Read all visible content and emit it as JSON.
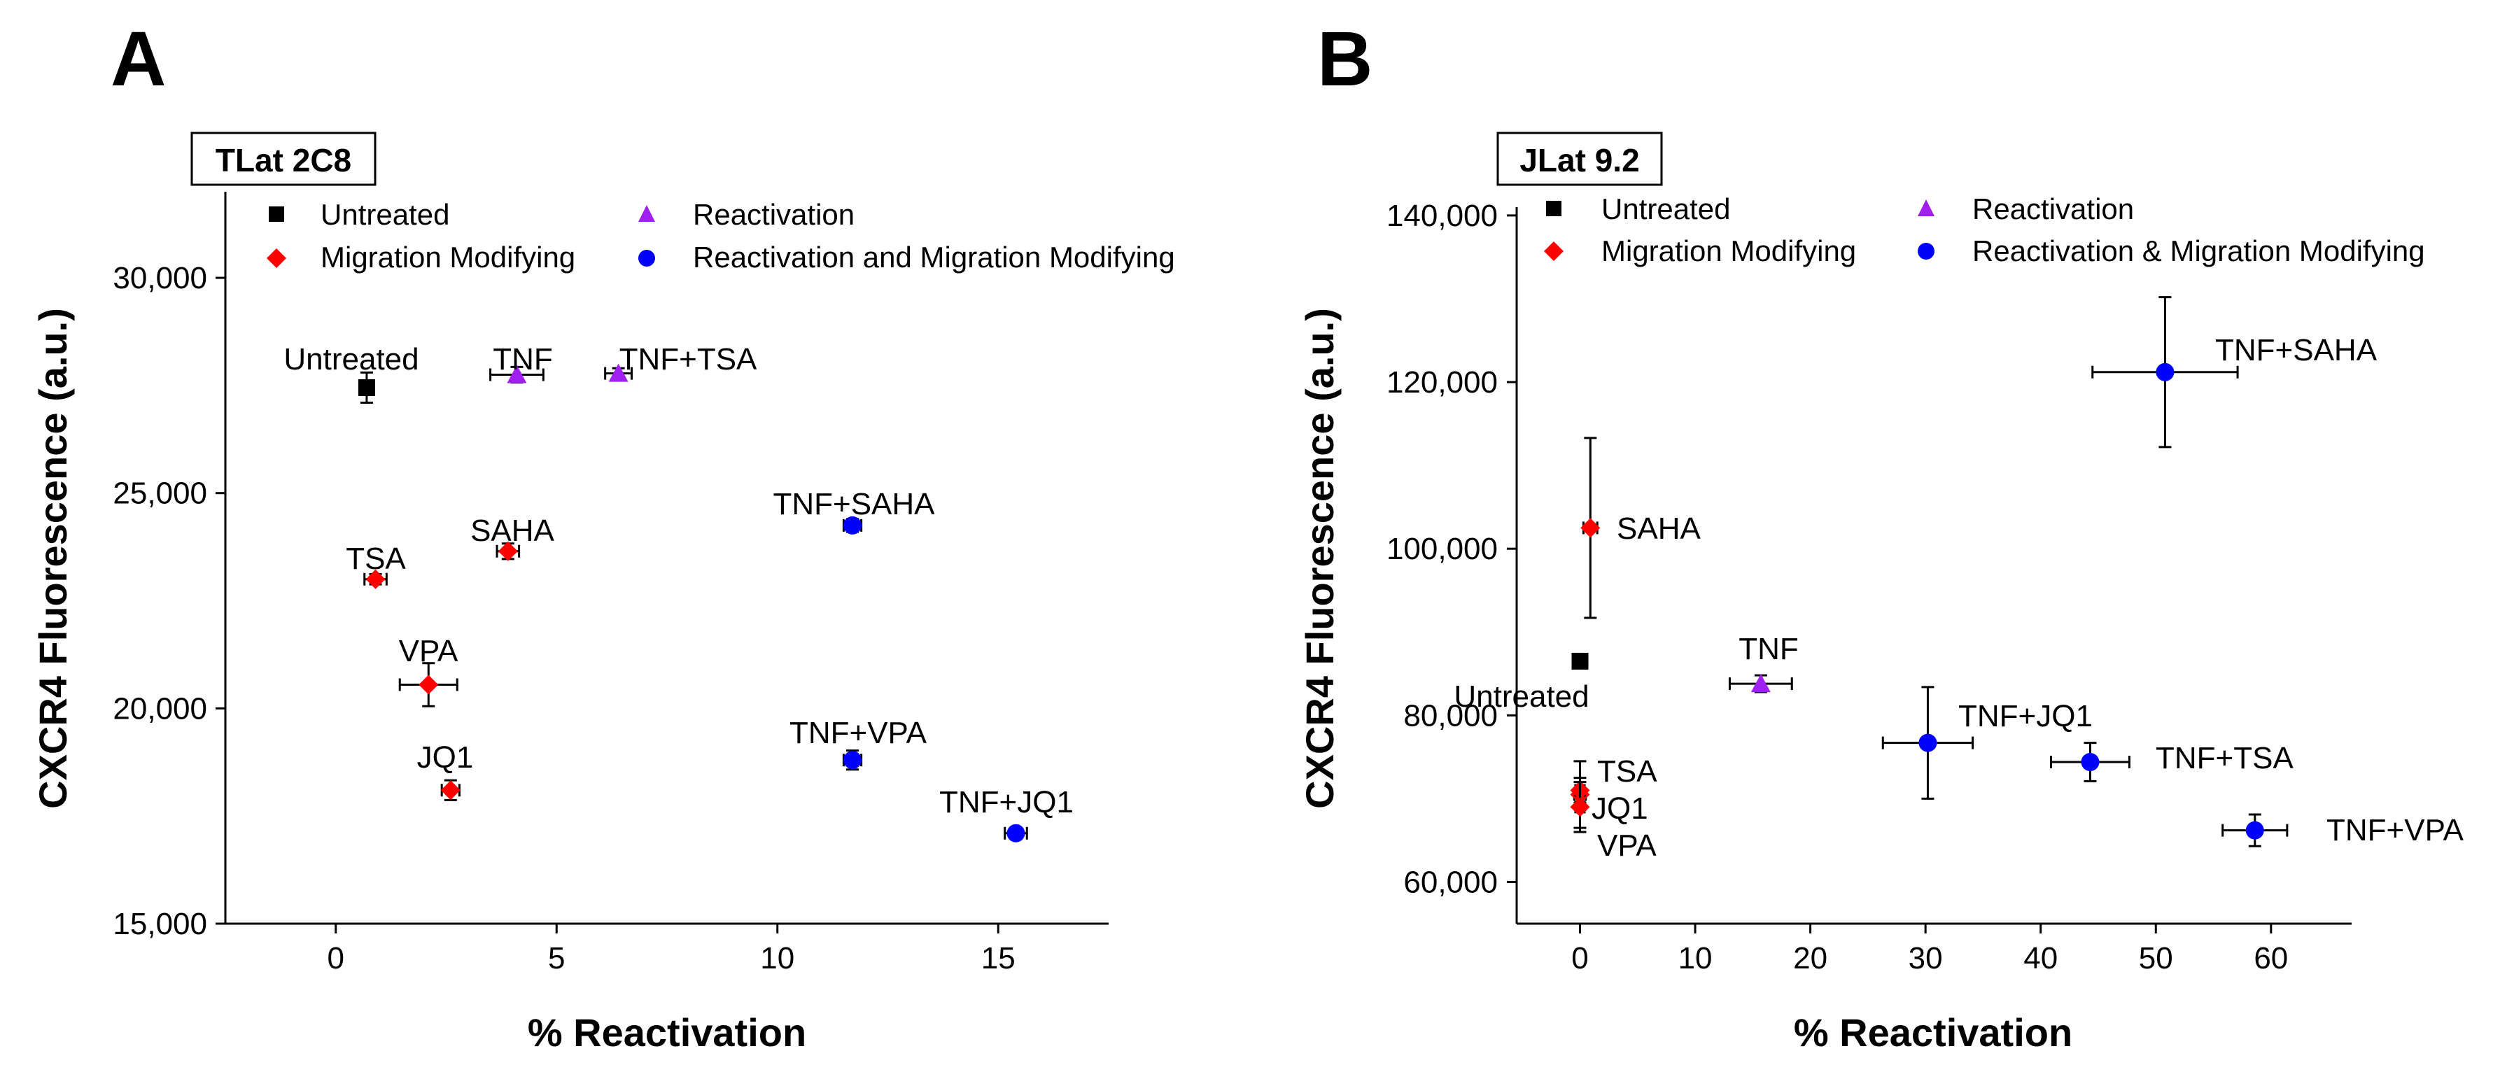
{
  "colors": {
    "untreated": "#000000",
    "migration": "#ff0000",
    "reactivation": "#a020f0",
    "both": "#0000ff"
  },
  "chart_data": [
    {
      "type": "scatter",
      "panel": "A",
      "cell_line": "TLat 2C8",
      "xlabel": "% Reactivation",
      "ylabel": "CXCR4 Fluorescence (a.u.)",
      "xlim": [
        -2.5,
        17.5
      ],
      "ylim": [
        15000,
        32000
      ],
      "xticks": [
        0,
        5,
        10,
        15
      ],
      "xtick_labels": [
        "0",
        "5",
        "10",
        "15"
      ],
      "yticks": [
        15000,
        20000,
        25000,
        30000
      ],
      "ytick_labels": [
        "15,000",
        "20,000",
        "25,000",
        "30,000"
      ],
      "legend": [
        {
          "name": "Untreated",
          "group": "untreated",
          "marker": "square"
        },
        {
          "name": "Reactivation",
          "group": "reactivation",
          "marker": "triangle"
        },
        {
          "name": "Migration Modifying",
          "group": "migration",
          "marker": "diamond"
        },
        {
          "name": "Reactivation and Migration Modifying",
          "group": "both",
          "marker": "circle"
        }
      ],
      "points": [
        {
          "label": "Untreated",
          "group": "untreated",
          "x": 0.7,
          "y": 27450,
          "xerr": 0.15,
          "yerr": 350
        },
        {
          "label": "TNF",
          "group": "reactivation",
          "x": 4.1,
          "y": 27750,
          "xerr": 0.6,
          "yerr": 180
        },
        {
          "label": "TNF+TSA",
          "group": "reactivation",
          "x": 6.4,
          "y": 27780,
          "xerr": 0.3,
          "yerr": 120
        },
        {
          "label": "SAHA",
          "group": "migration",
          "x": 3.9,
          "y": 23650,
          "xerr": 0.25,
          "yerr": 180
        },
        {
          "label": "TSA",
          "group": "migration",
          "x": 0.9,
          "y": 23000,
          "xerr": 0.25,
          "yerr": 120
        },
        {
          "label": "VPA",
          "group": "migration",
          "x": 2.1,
          "y": 20550,
          "xerr": 0.65,
          "yerr": 500
        },
        {
          "label": "JQ1",
          "group": "migration",
          "x": 2.6,
          "y": 18100,
          "xerr": 0.2,
          "yerr": 230
        },
        {
          "label": "TNF+SAHA",
          "group": "both",
          "x": 11.7,
          "y": 24250,
          "xerr": 0.2,
          "yerr": 150
        },
        {
          "label": "TNF+VPA",
          "group": "both",
          "x": 11.7,
          "y": 18800,
          "xerr": 0.2,
          "yerr": 220
        },
        {
          "label": "TNF+JQ1",
          "group": "both",
          "x": 15.4,
          "y": 17100,
          "xerr": 0.25,
          "yerr": 100
        }
      ]
    },
    {
      "type": "scatter",
      "panel": "B",
      "cell_line": "JLat 9.2",
      "xlabel": "% Reactivation",
      "ylabel": "CXCR4 Fluorescence (a.u.)",
      "xlim": [
        -5.5,
        67
      ],
      "ylim": [
        55000,
        141000
      ],
      "xticks": [
        0,
        10,
        20,
        30,
        40,
        50,
        60
      ],
      "xtick_labels": [
        "0",
        "10",
        "20",
        "30",
        "40",
        "50",
        "60"
      ],
      "yticks": [
        60000,
        80000,
        100000,
        120000,
        140000
      ],
      "ytick_labels": [
        "60,000",
        "80,000",
        "100,000",
        "120,000",
        "140,000"
      ],
      "legend": [
        {
          "name": "Untreated",
          "group": "untreated",
          "marker": "square"
        },
        {
          "name": "Reactivation",
          "group": "reactivation",
          "marker": "triangle"
        },
        {
          "name": "Migration Modifying",
          "group": "migration",
          "marker": "diamond"
        },
        {
          "name": "Reactivation & Migration Modifying",
          "group": "both",
          "marker": "circle"
        }
      ],
      "points": [
        {
          "label": "Untreated",
          "group": "untreated",
          "x": 0,
          "y": 86500,
          "xerr": 0,
          "yerr": 500
        },
        {
          "label": "SAHA",
          "group": "migration",
          "x": 0.9,
          "y": 102500,
          "xerr": 0.6,
          "yerr": 10800
        },
        {
          "label": "TSA",
          "group": "migration",
          "x": 0,
          "y": 70500,
          "xerr": 0.5,
          "yerr": 4000
        },
        {
          "label": "JQ1",
          "group": "migration",
          "x": 0,
          "y": 71000,
          "xerr": 0.4,
          "yerr": 1500
        },
        {
          "label": "VPA",
          "group": "migration",
          "x": 0,
          "y": 69000,
          "xerr": 0.4,
          "yerr": 3000
        },
        {
          "label": "TNF",
          "group": "reactivation",
          "x": 15.7,
          "y": 83800,
          "xerr": 2.7,
          "yerr": 1000
        },
        {
          "label": "TNF+JQ1",
          "group": "both",
          "x": 30.2,
          "y": 76700,
          "xerr": 3.9,
          "yerr": 6700
        },
        {
          "label": "TNF+TSA",
          "group": "both",
          "x": 44.3,
          "y": 74400,
          "xerr": 3.4,
          "yerr": 2300
        },
        {
          "label": "TNF+VPA",
          "group": "both",
          "x": 58.6,
          "y": 66200,
          "xerr": 2.8,
          "yerr": 1900
        },
        {
          "label": "TNF+SAHA",
          "group": "both",
          "x": 50.8,
          "y": 121200,
          "xerr": 6.3,
          "yerr": 9000
        }
      ]
    }
  ]
}
